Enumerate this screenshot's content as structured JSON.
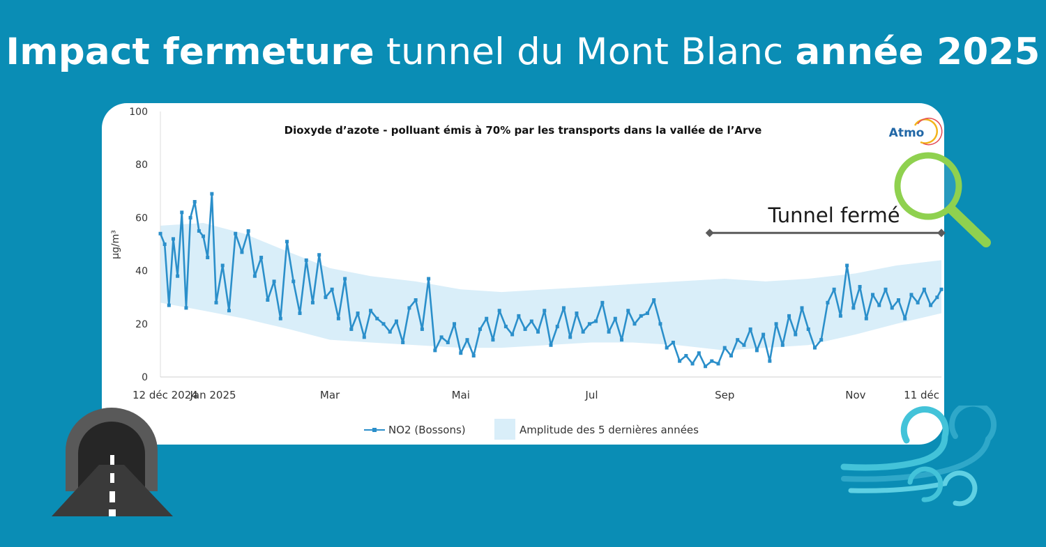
{
  "headline": {
    "bold_1": "Impact fermeture",
    "light": " tunnel du Mont Blanc ",
    "bold_2": "année 2025"
  },
  "chart_data": {
    "type": "line",
    "title": "Dioxyde d’azote - polluant émis à 70% par les transports dans la vallée de l’Arve",
    "ylabel": "µg/m³",
    "xlabel": "",
    "ylim": [
      0,
      100
    ],
    "y_ticks": [
      0,
      20,
      40,
      60,
      80,
      100
    ],
    "x_range": [
      "2024-12-12",
      "2025-12-11"
    ],
    "x_ticks": [
      {
        "date": "2024-12-12",
        "label": "12 déc 2024"
      },
      {
        "date": "2025-01-01",
        "label": "Jan 2025"
      },
      {
        "date": "2025-03-01",
        "label": "Mar"
      },
      {
        "date": "2025-05-01",
        "label": "Mai"
      },
      {
        "date": "2025-07-01",
        "label": "Jul"
      },
      {
        "date": "2025-09-01",
        "label": "Sep"
      },
      {
        "date": "2025-11-01",
        "label": "Nov"
      },
      {
        "date": "2025-12-11",
        "label": "11 déc"
      }
    ],
    "grid": false,
    "legend_position": "bottom",
    "series": [
      {
        "name": "NO2 (Bossons)",
        "type": "line",
        "color": "#2b8fca",
        "x": [
          "2024-12-12",
          "2024-12-14",
          "2024-12-16",
          "2024-12-18",
          "2024-12-20",
          "2024-12-22",
          "2024-12-24",
          "2024-12-26",
          "2024-12-28",
          "2024-12-30",
          "2025-01-01",
          "2025-01-03",
          "2025-01-05",
          "2025-01-07",
          "2025-01-10",
          "2025-01-13",
          "2025-01-16",
          "2025-01-19",
          "2025-01-22",
          "2025-01-25",
          "2025-01-28",
          "2025-01-31",
          "2025-02-03",
          "2025-02-06",
          "2025-02-09",
          "2025-02-12",
          "2025-02-15",
          "2025-02-18",
          "2025-02-21",
          "2025-02-24",
          "2025-02-27",
          "2025-03-02",
          "2025-03-05",
          "2025-03-08",
          "2025-03-11",
          "2025-03-14",
          "2025-03-17",
          "2025-03-20",
          "2025-03-23",
          "2025-03-26",
          "2025-03-29",
          "2025-04-01",
          "2025-04-04",
          "2025-04-07",
          "2025-04-10",
          "2025-04-13",
          "2025-04-16",
          "2025-04-19",
          "2025-04-22",
          "2025-04-25",
          "2025-04-28",
          "2025-05-01",
          "2025-05-04",
          "2025-05-07",
          "2025-05-10",
          "2025-05-13",
          "2025-05-16",
          "2025-05-19",
          "2025-05-22",
          "2025-05-25",
          "2025-05-28",
          "2025-05-31",
          "2025-06-03",
          "2025-06-06",
          "2025-06-09",
          "2025-06-12",
          "2025-06-15",
          "2025-06-18",
          "2025-06-21",
          "2025-06-24",
          "2025-06-27",
          "2025-06-30",
          "2025-07-03",
          "2025-07-06",
          "2025-07-09",
          "2025-07-12",
          "2025-07-15",
          "2025-07-18",
          "2025-07-21",
          "2025-07-24",
          "2025-07-27",
          "2025-07-30",
          "2025-08-02",
          "2025-08-05",
          "2025-08-08",
          "2025-08-11",
          "2025-08-14",
          "2025-08-17",
          "2025-08-20",
          "2025-08-23",
          "2025-08-26",
          "2025-08-29",
          "2025-09-01",
          "2025-09-04",
          "2025-09-07",
          "2025-09-10",
          "2025-09-13",
          "2025-09-16",
          "2025-09-19",
          "2025-09-22",
          "2025-09-25",
          "2025-09-28",
          "2025-10-01",
          "2025-10-04",
          "2025-10-07",
          "2025-10-10",
          "2025-10-13",
          "2025-10-16",
          "2025-10-19",
          "2025-10-22",
          "2025-10-25",
          "2025-10-28",
          "2025-10-31",
          "2025-11-03",
          "2025-11-06",
          "2025-11-09",
          "2025-11-12",
          "2025-11-15",
          "2025-11-18",
          "2025-11-21",
          "2025-11-24",
          "2025-11-27",
          "2025-11-30",
          "2025-12-03",
          "2025-12-06",
          "2025-12-09",
          "2025-12-11"
        ],
        "y": [
          54,
          50,
          27,
          52,
          38,
          62,
          26,
          60,
          66,
          55,
          53,
          45,
          69,
          28,
          42,
          25,
          54,
          47,
          55,
          38,
          45,
          29,
          36,
          22,
          51,
          36,
          24,
          44,
          28,
          46,
          30,
          33,
          22,
          37,
          18,
          24,
          15,
          25,
          22,
          20,
          17,
          21,
          13,
          26,
          29,
          18,
          37,
          10,
          15,
          13,
          20,
          9,
          14,
          8,
          18,
          22,
          14,
          25,
          19,
          16,
          23,
          18,
          21,
          17,
          25,
          12,
          19,
          26,
          15,
          24,
          17,
          20,
          21,
          28,
          17,
          22,
          14,
          25,
          20,
          23,
          24,
          29,
          20,
          11,
          13,
          6,
          8,
          5,
          9,
          4,
          6,
          5,
          11,
          8,
          14,
          12,
          18,
          10,
          16,
          6,
          20,
          12,
          23,
          16,
          26,
          18,
          11,
          14,
          28,
          33,
          23,
          42,
          26,
          34,
          22,
          31,
          27,
          33,
          26,
          29,
          22,
          31,
          28,
          33,
          27,
          30,
          33
        ]
      },
      {
        "name": "Amplitude des 5 dernières années",
        "type": "area-band",
        "color": "#d9eef9",
        "x": [
          "2024-12-12",
          "2025-01-01",
          "2025-01-20",
          "2025-02-10",
          "2025-03-01",
          "2025-03-20",
          "2025-04-10",
          "2025-05-01",
          "2025-05-20",
          "2025-06-10",
          "2025-07-01",
          "2025-07-20",
          "2025-08-10",
          "2025-09-01",
          "2025-09-20",
          "2025-10-10",
          "2025-11-01",
          "2025-11-20",
          "2025-12-11"
        ],
        "low": [
          28,
          25,
          22,
          18,
          14,
          13,
          12,
          11,
          11,
          12,
          13,
          13,
          12,
          10,
          11,
          12,
          16,
          20,
          24
        ],
        "high": [
          57,
          58,
          54,
          47,
          41,
          38,
          36,
          33,
          32,
          33,
          34,
          35,
          36,
          37,
          36,
          37,
          39,
          42,
          44
        ]
      }
    ],
    "annotations": [
      {
        "text": "Tunnel fermé",
        "type": "range",
        "from": "2025-08-25",
        "to": "2025-12-11",
        "y": 54
      }
    ],
    "logo": "Atmo"
  },
  "icons": {
    "magnifier": "magnifier-icon",
    "tunnel": "tunnel-icon",
    "wind": "wind-icon"
  },
  "colors": {
    "background": "#0a8db5",
    "line": "#2b8fca",
    "band": "#d9eef9",
    "annotation": "#595959",
    "magnifier": "#8fd14f"
  }
}
